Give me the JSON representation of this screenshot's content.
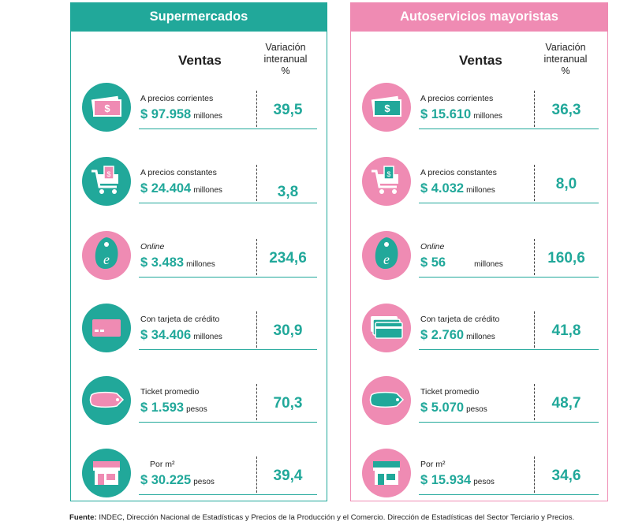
{
  "panels": {
    "left": {
      "title": "Supermercados",
      "col_ventas": "Ventas",
      "col_var_1": "Variación",
      "col_var_2": "interanual",
      "col_var_3": "%",
      "rows": [
        {
          "label": "A precios corrientes",
          "value": "$ 97.958",
          "unit": "millones",
          "pct": "39,5"
        },
        {
          "label": "A precios constantes",
          "value": "$ 24.404",
          "unit": "millones",
          "pct": "3,8"
        },
        {
          "label": "Online",
          "value": "$ 3.483",
          "unit": "millones",
          "pct": "234,6"
        },
        {
          "label": "Con tarjeta de crédito",
          "value": "$ 34.406",
          "unit": "millones",
          "pct": "30,9"
        },
        {
          "label": "Ticket promedio",
          "value": "$ 1.593",
          "unit": "pesos",
          "pct": "70,3"
        },
        {
          "label": "Por m²",
          "value": "$ 30.225",
          "unit": "pesos",
          "pct": "39,4"
        }
      ]
    },
    "right": {
      "title": "Autoservicios mayoristas",
      "col_ventas": "Ventas",
      "col_var_1": "Variación",
      "col_var_2": "interanual",
      "col_var_3": "%",
      "rows": [
        {
          "label": "A precios corrientes",
          "value": "$ 15.610",
          "unit": "millones",
          "pct": "36,3"
        },
        {
          "label": "A precios constantes",
          "value": "$ 4.032",
          "unit": "millones",
          "pct": "8,0"
        },
        {
          "label": "Online",
          "value": "$ 56",
          "unit": "millones",
          "pct": "160,6"
        },
        {
          "label": "Con tarjeta de crédito",
          "value": "$ 2.760",
          "unit": "millones",
          "pct": "41,8"
        },
        {
          "label": "Ticket promedio",
          "value": "$ 5.070",
          "unit": "pesos",
          "pct": "48,7"
        },
        {
          "label": "Por m²",
          "value": "$ 15.934",
          "unit": "pesos",
          "pct": "34,6"
        }
      ]
    }
  },
  "footer": {
    "label": "Fuente:",
    "text": " INDEC, Dirección Nacional de Estadísticas y Precios de la Producción y el Comercio. Dirección de Estadísticas del Sector Terciario y Precios."
  },
  "colors": {
    "teal": "#21a89a",
    "pink": "#ef8bb3"
  }
}
